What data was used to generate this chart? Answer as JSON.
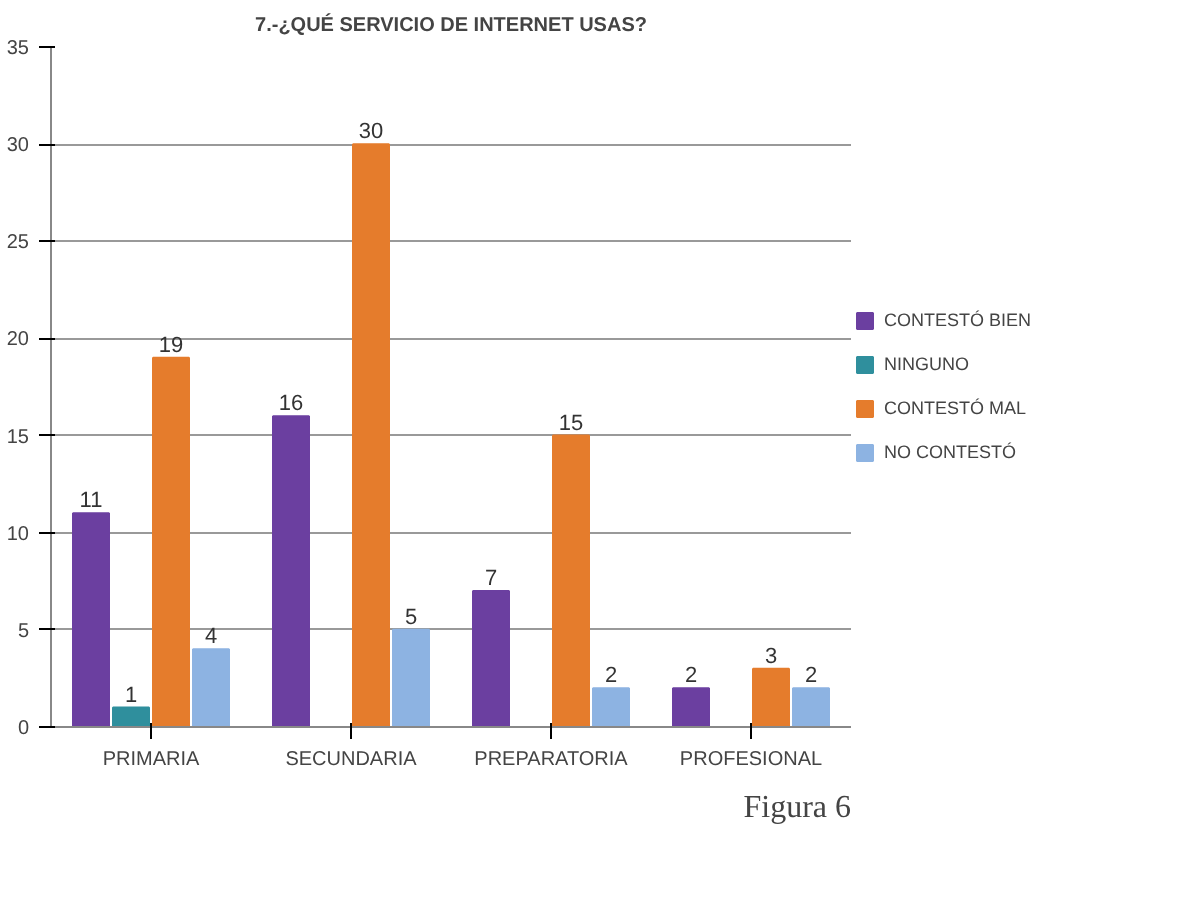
{
  "chart_data": {
    "type": "bar",
    "title": "7.-¿QUÉ SERVICIO DE INTERNET USAS?",
    "categories": [
      "PRIMARIA",
      "SECUNDARIA",
      "PREPARATORIA",
      "PROFESIONAL"
    ],
    "series": [
      {
        "name": "CONTESTÓ BIEN",
        "color": "#6b3fa0",
        "values": [
          11,
          16,
          7,
          2
        ]
      },
      {
        "name": "NINGUNO",
        "color": "#2f8f9d",
        "values": [
          1,
          null,
          null,
          null
        ]
      },
      {
        "name": "CONTESTÓ MAL",
        "color": "#e57c2c",
        "values": [
          19,
          30,
          15,
          3
        ]
      },
      {
        "name": "NO CONTESTÓ",
        "color": "#8db3e2",
        "values": [
          4,
          5,
          2,
          2
        ]
      }
    ],
    "ylim": [
      0,
      35
    ],
    "yticks": [
      0,
      5,
      10,
      15,
      20,
      25,
      30,
      35
    ],
    "grid": "y",
    "legend": "right",
    "data_labels": true,
    "annotations": [
      "Figura 6"
    ]
  }
}
